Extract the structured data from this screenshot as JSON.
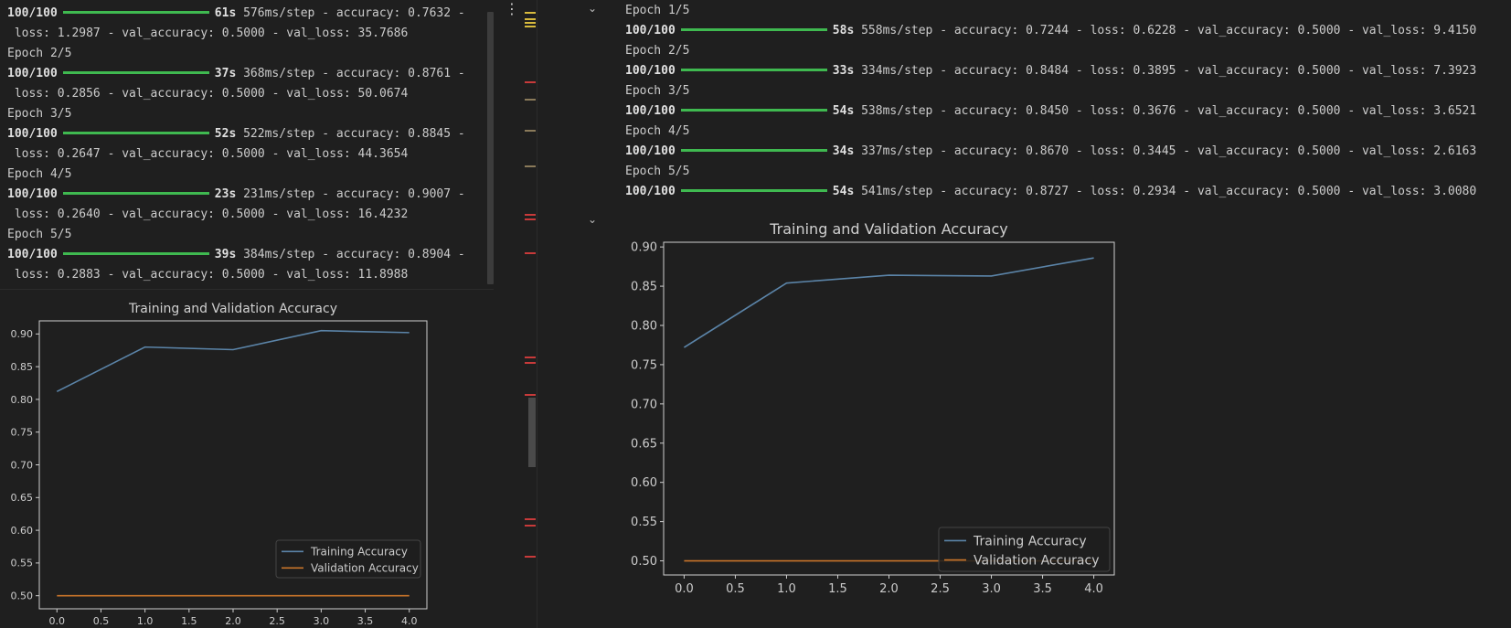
{
  "left_output": {
    "lines": [
      {
        "type": "progress",
        "steps": "100/100",
        "time": "61s",
        "rest": "576ms/step - accuracy: 0.7632 -"
      },
      {
        "type": "text",
        "text": " loss: 1.2987 - val_accuracy: 0.5000 - val_loss: 35.7686"
      },
      {
        "type": "text",
        "text": "Epoch 2/5"
      },
      {
        "type": "progress",
        "steps": "100/100",
        "time": "37s",
        "rest": "368ms/step - accuracy: 0.8761 -"
      },
      {
        "type": "text",
        "text": " loss: 0.2856 - val_accuracy: 0.5000 - val_loss: 50.0674"
      },
      {
        "type": "text",
        "text": "Epoch 3/5"
      },
      {
        "type": "progress",
        "steps": "100/100",
        "time": "52s",
        "rest": "522ms/step - accuracy: 0.8845 -"
      },
      {
        "type": "text",
        "text": " loss: 0.2647 - val_accuracy: 0.5000 - val_loss: 44.3654"
      },
      {
        "type": "text",
        "text": "Epoch 4/5"
      },
      {
        "type": "progress",
        "steps": "100/100",
        "time": "23s",
        "rest": "231ms/step - accuracy: 0.9007 -"
      },
      {
        "type": "text",
        "text": " loss: 0.2640 - val_accuracy: 0.5000 - val_loss: 16.4232"
      },
      {
        "type": "text",
        "text": "Epoch 5/5"
      },
      {
        "type": "progress",
        "steps": "100/100",
        "time": "39s",
        "rest": "384ms/step - accuracy: 0.8904 -"
      },
      {
        "type": "text",
        "text": " loss: 0.2883 - val_accuracy: 0.5000 - val_loss: 11.8988"
      }
    ]
  },
  "right_output": {
    "lines": [
      {
        "type": "text",
        "text": "Epoch 1/5"
      },
      {
        "type": "progress",
        "steps": "100/100",
        "time": "58s",
        "rest": "558ms/step - accuracy: 0.7244 - loss: 0.6228 - val_accuracy: 0.5000 - val_loss: 9.4150"
      },
      {
        "type": "text",
        "text": "Epoch 2/5"
      },
      {
        "type": "progress",
        "steps": "100/100",
        "time": "33s",
        "rest": "334ms/step - accuracy: 0.8484 - loss: 0.3895 - val_accuracy: 0.5000 - val_loss: 7.3923"
      },
      {
        "type": "text",
        "text": "Epoch 3/5"
      },
      {
        "type": "progress",
        "steps": "100/100",
        "time": "54s",
        "rest": "538ms/step - accuracy: 0.8450 - loss: 0.3676 - val_accuracy: 0.5000 - val_loss: 3.6521"
      },
      {
        "type": "text",
        "text": "Epoch 4/5"
      },
      {
        "type": "progress",
        "steps": "100/100",
        "time": "34s",
        "rest": "337ms/step - accuracy: 0.8670 - loss: 0.3445 - val_accuracy: 0.5000 - val_loss: 2.6163"
      },
      {
        "type": "text",
        "text": "Epoch 5/5"
      },
      {
        "type": "progress",
        "steps": "100/100",
        "time": "54s",
        "rest": "541ms/step - accuracy: 0.8727 - loss: 0.2934 - val_accuracy: 0.5000 - val_loss: 3.0080"
      }
    ]
  },
  "icons": {
    "kebab": "⋮",
    "chevron": "⌄"
  },
  "colors": {
    "progress": "#3fb950",
    "training": "#5b84a8",
    "validation": "#c8742a",
    "overview_yellow": "#d7ba3d",
    "overview_red": "#c73a3a",
    "overview_tan": "#8a7a5a"
  },
  "chart_data": [
    {
      "type": "line",
      "title": "Training and Validation Accuracy",
      "x": [
        0,
        1,
        2,
        3,
        4
      ],
      "series": [
        {
          "name": "Training Accuracy",
          "values": [
            0.812,
            0.88,
            0.876,
            0.905,
            0.902
          ]
        },
        {
          "name": "Validation Accuracy",
          "values": [
            0.5,
            0.5,
            0.5,
            0.5,
            0.5
          ]
        }
      ],
      "xticks": [
        "0.0",
        "0.5",
        "1.0",
        "1.5",
        "2.0",
        "2.5",
        "3.0",
        "3.5",
        "4.0"
      ],
      "yticks": [
        "0.50",
        "0.55",
        "0.60",
        "0.65",
        "0.70",
        "0.75",
        "0.80",
        "0.85",
        "0.90"
      ],
      "xlim": [
        -0.2,
        4.2
      ],
      "ylim": [
        0.48,
        0.92
      ],
      "legend": "lower-right",
      "grid": false
    },
    {
      "type": "line",
      "title": "Training and Validation Accuracy",
      "x": [
        0,
        1,
        2,
        3,
        4
      ],
      "series": [
        {
          "name": "Training Accuracy",
          "values": [
            0.772,
            0.854,
            0.864,
            0.863,
            0.886
          ]
        },
        {
          "name": "Validation Accuracy",
          "values": [
            0.5,
            0.5,
            0.5,
            0.5,
            0.5
          ]
        }
      ],
      "xticks": [
        "0.0",
        "0.5",
        "1.0",
        "1.5",
        "2.0",
        "2.5",
        "3.0",
        "3.5",
        "4.0"
      ],
      "yticks": [
        "0.50",
        "0.55",
        "0.60",
        "0.65",
        "0.70",
        "0.75",
        "0.80",
        "0.85",
        "0.90"
      ],
      "xlim": [
        -0.2,
        4.2
      ],
      "ylim": [
        0.482,
        0.906
      ],
      "legend": "lower-right",
      "grid": false
    }
  ]
}
